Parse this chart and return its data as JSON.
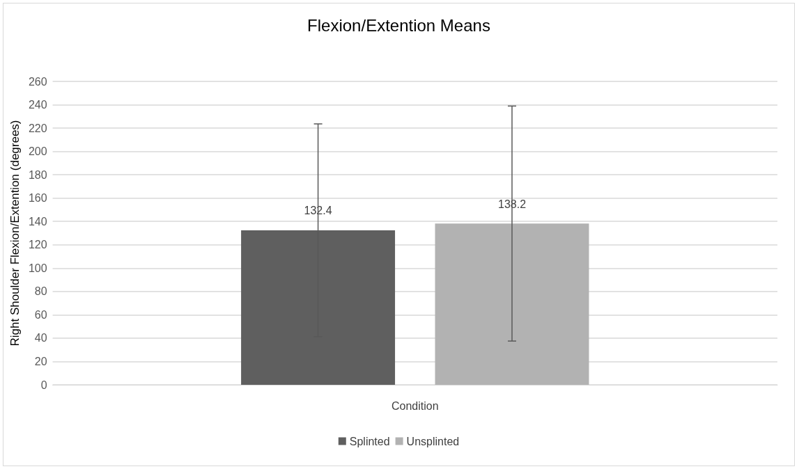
{
  "chart_data": {
    "type": "bar",
    "title": "Flexion/Extention Means",
    "ylabel": "Right Shoulder Flexion/Extention (degrees)",
    "categories": [
      "Condition"
    ],
    "series": [
      {
        "name": "Splinted",
        "color": "#5f5f5f",
        "values": [
          132.4
        ],
        "errors": [
          91.2
        ]
      },
      {
        "name": "Unsplinted",
        "color": "#b2b2b2",
        "values": [
          138.2
        ],
        "errors": [
          100.7
        ]
      }
    ],
    "ylim": [
      0,
      260
    ],
    "yticks": [
      0,
      20,
      40,
      60,
      80,
      100,
      120,
      140,
      160,
      180,
      200,
      220,
      240,
      260
    ],
    "grid": "y",
    "legend": "bottom",
    "data_labels": true
  }
}
